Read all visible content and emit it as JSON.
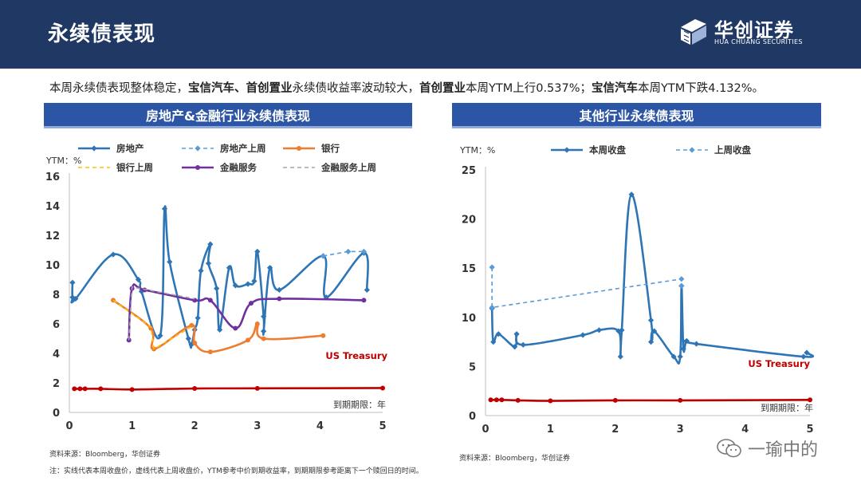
{
  "header": {
    "title": "永续债表现",
    "logo_name": "华创证券",
    "logo_sub": "HUA CHUANG SECURITIES"
  },
  "summary": [
    {
      "text": "本周永续债表现整体稳定，",
      "bold": false
    },
    {
      "text": "宝信汽车、首创置业",
      "bold": true
    },
    {
      "text": "永续债收益率波动较大，",
      "bold": false
    },
    {
      "text": "首创置业",
      "bold": true
    },
    {
      "text": "本周YTM上行0.537%；",
      "bold": false
    },
    {
      "text": "宝信汽车",
      "bold": true
    },
    {
      "text": "本周YTM下跌4.132%。",
      "bold": false
    }
  ],
  "left_panel": {
    "title": "房地产&金融行业永续债表现"
  },
  "right_panel": {
    "title": "其他行业永续债表现"
  },
  "footnotes": {
    "source_left": "资料来源：Bloomberg，华创证券",
    "source_right": "资料来源：Bloomberg，华创证券",
    "note": "注：实线代表本周收盘价，虚线代表上周收盘价，YTM参考中价到期收益率，到期期限参考距离下一个赎回日的时间。"
  },
  "watermark": {
    "text": "一瑜中的"
  },
  "chart_data": [
    {
      "type": "line",
      "ylabel": "YTM：%",
      "xlabel": "到期期限：年",
      "xlim": [
        0,
        5
      ],
      "ylim": [
        0,
        16
      ],
      "xticks": [
        0,
        1,
        2,
        3,
        4,
        5
      ],
      "yticks": [
        0,
        2,
        4,
        6,
        8,
        10,
        12,
        14,
        16
      ],
      "grid": false,
      "legend_position": "top",
      "annotation": "US Treasury",
      "colors": {
        "real_estate": "#2e75b6",
        "bank": "#ed7d31",
        "finance": "#7030a0",
        "treasury": "#c00000"
      },
      "series": [
        {
          "name": "房地产",
          "color": "#2e75b6",
          "dash": false,
          "marker": "diamond",
          "points": [
            [
              0.05,
              8.8
            ],
            [
              0.05,
              7.8
            ],
            [
              0.1,
              7.7
            ],
            [
              0.7,
              10.7
            ],
            [
              1.1,
              9.0
            ],
            [
              1.15,
              8.2
            ],
            [
              1.45,
              5.2
            ],
            [
              1.52,
              13.8
            ],
            [
              1.6,
              10.2
            ],
            [
              1.9,
              5.0
            ],
            [
              1.95,
              4.6
            ],
            [
              2.0,
              5.6
            ],
            [
              2.05,
              6.4
            ],
            [
              2.1,
              9.6
            ],
            [
              2.25,
              11.4
            ],
            [
              2.22,
              10.1
            ],
            [
              2.35,
              8.4
            ],
            [
              2.4,
              5.6
            ],
            [
              2.55,
              9.8
            ],
            [
              2.65,
              8.6
            ],
            [
              2.85,
              8.7
            ],
            [
              2.95,
              8.9
            ],
            [
              3.0,
              10.9
            ],
            [
              3.1,
              6.5
            ],
            [
              3.1,
              5.5
            ],
            [
              3.2,
              9.8
            ],
            [
              3.35,
              8.3
            ],
            [
              4.05,
              10.6
            ],
            [
              4.1,
              7.8
            ],
            [
              4.7,
              10.8
            ],
            [
              4.75,
              8.3
            ]
          ]
        },
        {
          "name": "房地产上周",
          "color": "#5b9bd5",
          "dash": true,
          "marker": "diamond",
          "points": [
            [
              4.05,
              10.6
            ],
            [
              4.45,
              10.9
            ],
            [
              4.7,
              10.9
            ]
          ]
        },
        {
          "name": "银行",
          "color": "#ed7d31",
          "dash": false,
          "marker": "dot",
          "points": [
            [
              0.7,
              7.6
            ],
            [
              1.3,
              5.7
            ],
            [
              1.35,
              4.3
            ],
            [
              1.95,
              5.9
            ],
            [
              2.0,
              4.7
            ],
            [
              2.25,
              4.1
            ],
            [
              2.85,
              4.9
            ],
            [
              3.0,
              6.0
            ],
            [
              3.1,
              5.0
            ],
            [
              4.05,
              5.2
            ]
          ]
        },
        {
          "name": "银行上周",
          "color": "#ffc000",
          "dash": true,
          "marker": "none",
          "points": [
            [
              0.7,
              7.6
            ],
            [
              1.3,
              5.8
            ],
            [
              1.35,
              4.3
            ],
            [
              1.95,
              5.8
            ]
          ]
        },
        {
          "name": "金融服务",
          "color": "#7030a0",
          "dash": false,
          "marker": "dot",
          "points": [
            [
              0.95,
              4.9
            ],
            [
              1.0,
              8.4
            ],
            [
              1.2,
              8.3
            ],
            [
              2.0,
              7.6
            ],
            [
              2.25,
              7.6
            ],
            [
              2.65,
              5.7
            ],
            [
              2.9,
              7.4
            ],
            [
              3.35,
              7.7
            ],
            [
              4.7,
              7.6
            ]
          ]
        },
        {
          "name": "金融服务上周",
          "color": "#a6a6a6",
          "dash": true,
          "marker": "none",
          "points": [
            [
              0.95,
              4.9
            ],
            [
              1.0,
              8.5
            ],
            [
              2.0,
              7.7
            ]
          ]
        },
        {
          "name": "",
          "color": "#c00000",
          "dash": false,
          "marker": "dot",
          "points": [
            [
              0.08,
              1.6
            ],
            [
              0.17,
              1.6
            ],
            [
              0.25,
              1.6
            ],
            [
              0.5,
              1.6
            ],
            [
              1.0,
              1.55
            ],
            [
              2.0,
              1.62
            ],
            [
              3.0,
              1.63
            ],
            [
              5.0,
              1.65
            ]
          ]
        }
      ]
    },
    {
      "type": "line",
      "ylabel": "YTM：%",
      "xlabel": "到期期限：年",
      "xlim": [
        0,
        5
      ],
      "ylim": [
        0,
        25
      ],
      "xticks": [
        0,
        1,
        2,
        3,
        4,
        5
      ],
      "yticks": [
        0,
        5,
        10,
        15,
        20,
        25
      ],
      "grid": false,
      "legend_position": "top",
      "annotation": "US Treasury",
      "series": [
        {
          "name": "本周收盘",
          "color": "#2e75b6",
          "dash": false,
          "marker": "diamond",
          "points": [
            [
              0.1,
              10.9
            ],
            [
              0.12,
              7.5
            ],
            [
              0.2,
              8.3
            ],
            [
              0.45,
              7.0
            ],
            [
              0.48,
              8.3
            ],
            [
              0.58,
              7.2
            ],
            [
              1.5,
              8.2
            ],
            [
              1.75,
              8.7
            ],
            [
              2.05,
              8.6
            ],
            [
              2.08,
              6.0
            ],
            [
              2.1,
              8.7
            ],
            [
              2.25,
              22.5
            ],
            [
              2.55,
              9.7
            ],
            [
              2.55,
              7.5
            ],
            [
              2.6,
              8.6
            ],
            [
              2.9,
              6.0
            ],
            [
              3.0,
              6.0
            ],
            [
              3.02,
              13.2
            ],
            [
              3.05,
              6.8
            ],
            [
              3.1,
              7.6
            ],
            [
              3.25,
              7.3
            ],
            [
              4.9,
              6.0
            ],
            [
              4.95,
              6.4
            ]
          ]
        },
        {
          "name": "上周收盘",
          "color": "#5b9bd5",
          "dash": true,
          "marker": "diamond",
          "points": [
            [
              0.1,
              15.1
            ],
            [
              0.1,
              11.0
            ],
            [
              3.02,
              13.9
            ],
            [
              3.02,
              13.2
            ]
          ]
        },
        {
          "name": "",
          "color": "#c00000",
          "dash": false,
          "marker": "dot",
          "points": [
            [
              0.08,
              1.6
            ],
            [
              0.17,
              1.6
            ],
            [
              0.25,
              1.6
            ],
            [
              0.5,
              1.55
            ],
            [
              1.0,
              1.5
            ],
            [
              2.0,
              1.55
            ],
            [
              3.0,
              1.55
            ],
            [
              5.0,
              1.6
            ]
          ]
        }
      ]
    }
  ]
}
